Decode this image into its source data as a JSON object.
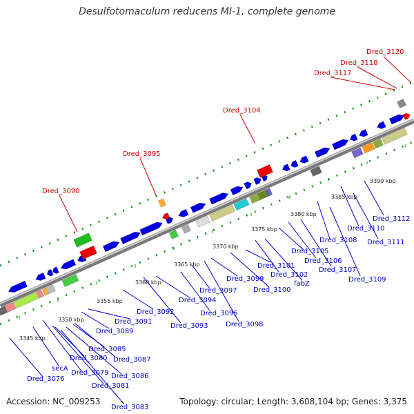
{
  "title": "Desulfotomaculum reducens MI-1, complete genome",
  "footer": {
    "accession": "Accession: NC_009253",
    "topology": "Topology: circular; Length: 3,608,104 bp; Genes: 3,375"
  },
  "colors": {
    "forward_gene": "#0000dd",
    "red_gene": "#ee0000",
    "red_label": "#cc0000",
    "blue_label": "#0000cc",
    "green_gene": "#22bb22",
    "backbone": "#999999",
    "dotted_track": "#119911"
  },
  "kbp_ticks": [
    "3345 kbp",
    "3350 kbp",
    "3355 kbp",
    "3360 kbp",
    "3365 kbp",
    "3370 kbp",
    "3375 kbp",
    "3380 kbp",
    "3385 kbp",
    "3390 kbp"
  ],
  "top_labels": [
    "Dred_3090",
    "Dred_3095",
    "Dred_3104",
    "Dred_3117",
    "Dred_3118",
    "Dred_3120"
  ],
  "bottom_labels": [
    "Dred_3076",
    "secA",
    "Dred_3079",
    "Dred_3081",
    "Dred_3083",
    "Dred_3080",
    "Dred_3086",
    "Dred_3085",
    "Dred_3087",
    "Dred_3089",
    "Dred_3091",
    "Dred_3092",
    "Dred_3093",
    "Dred_3094",
    "Dred_3096",
    "Dred_3097",
    "Dred_3098",
    "Dred_3099",
    "Dred_3100",
    "Dred_3101",
    "Dred_3102",
    "fabZ",
    "Dred_3105",
    "Dred_3106",
    "Dred_3107",
    "Dred_3108",
    "Dred_3109",
    "Dred_3110",
    "Dred_3111",
    "Dred_3112"
  ]
}
